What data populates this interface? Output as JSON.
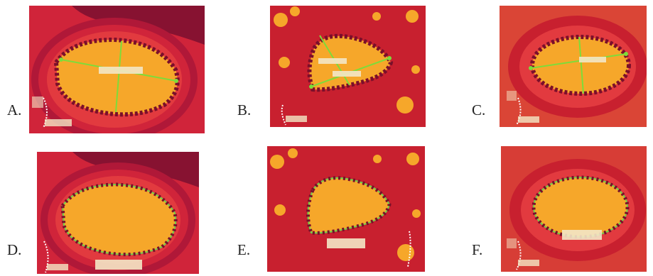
{
  "panels": [
    {
      "letter": "A.",
      "overlay": "lines"
    },
    {
      "letter": "B.",
      "overlay": "lines"
    },
    {
      "letter": "C.",
      "overlay": "lines"
    },
    {
      "letter": "D.",
      "overlay": "area"
    },
    {
      "letter": "E.",
      "overlay": "area"
    },
    {
      "letter": "F.",
      "overlay": "area"
    }
  ],
  "colors": {
    "tissue": "#c8202f",
    "tissue_dark": "#8a1030",
    "lumen": "#f6a72a",
    "epithelium": "#7a0f2a",
    "measure_line": "#7ddc3a",
    "area_outline": "#6fd04a"
  }
}
